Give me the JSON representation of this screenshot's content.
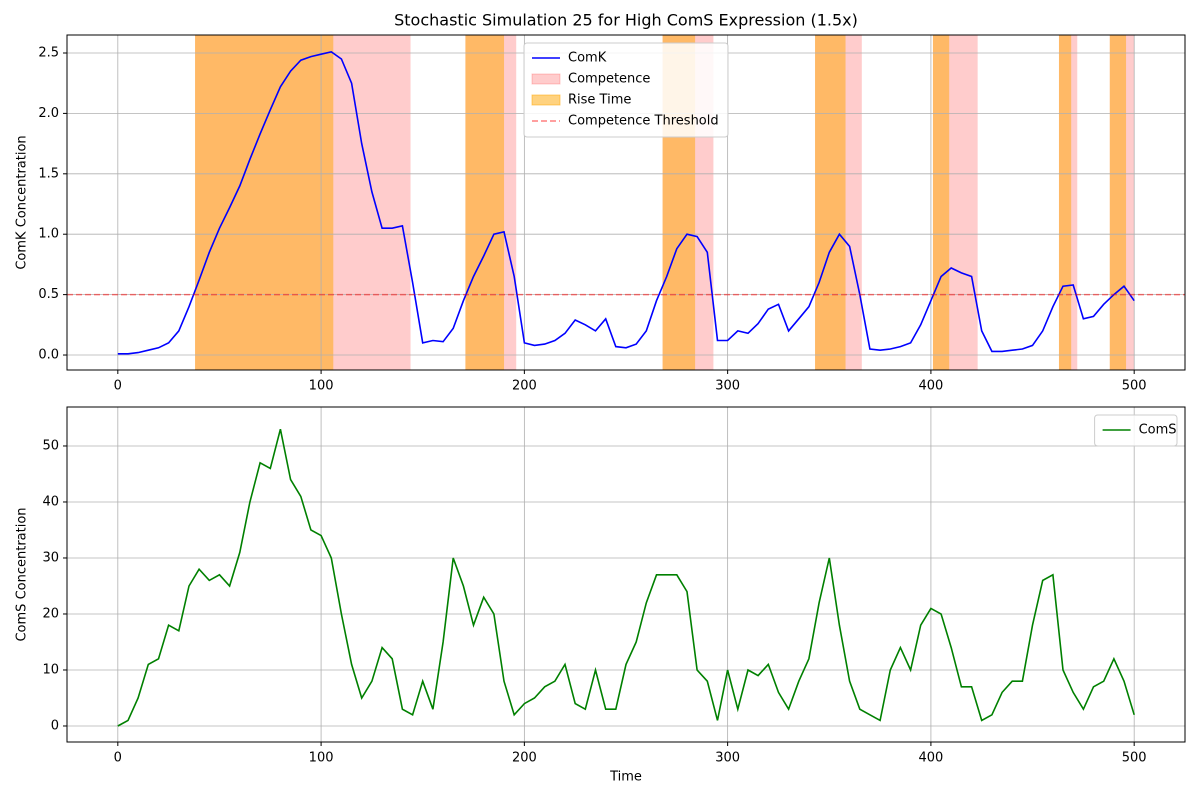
{
  "chart_data": [
    {
      "type": "line",
      "title": "Stochastic Simulation 25 for High ComS Expression (1.5x)",
      "ylabel": "ComK Concentration",
      "x": [
        0,
        5,
        10,
        15,
        20,
        25,
        30,
        35,
        40,
        45,
        50,
        55,
        60,
        65,
        70,
        75,
        80,
        85,
        90,
        95,
        100,
        105,
        110,
        115,
        120,
        125,
        130,
        135,
        140,
        145,
        150,
        155,
        160,
        165,
        170,
        175,
        180,
        185,
        190,
        195,
        200,
        205,
        210,
        215,
        220,
        225,
        230,
        235,
        240,
        245,
        250,
        255,
        260,
        265,
        270,
        275,
        280,
        285,
        290,
        295,
        300,
        305,
        310,
        315,
        320,
        325,
        330,
        335,
        340,
        345,
        350,
        355,
        360,
        365,
        370,
        375,
        380,
        385,
        390,
        395,
        400,
        405,
        410,
        415,
        420,
        425,
        430,
        435,
        440,
        445,
        450,
        455,
        460,
        465,
        470,
        475,
        480,
        485,
        490,
        495,
        500
      ],
      "series": [
        {
          "name": "ComK",
          "color": "#0000ff",
          "values": [
            0.01,
            0.01,
            0.02,
            0.04,
            0.06,
            0.1,
            0.2,
            0.4,
            0.62,
            0.85,
            1.05,
            1.22,
            1.4,
            1.62,
            1.83,
            2.03,
            2.22,
            2.35,
            2.44,
            2.47,
            2.49,
            2.51,
            2.45,
            2.25,
            1.75,
            1.35,
            1.05,
            1.05,
            1.07,
            0.6,
            0.1,
            0.12,
            0.11,
            0.22,
            0.45,
            0.65,
            0.82,
            1.0,
            1.02,
            0.65,
            0.1,
            0.08,
            0.09,
            0.12,
            0.18,
            0.29,
            0.25,
            0.2,
            0.3,
            0.07,
            0.06,
            0.09,
            0.2,
            0.45,
            0.65,
            0.88,
            1.0,
            0.98,
            0.85,
            0.12,
            0.12,
            0.2,
            0.18,
            0.26,
            0.38,
            0.42,
            0.2,
            0.3,
            0.4,
            0.6,
            0.85,
            1.0,
            0.9,
            0.5,
            0.05,
            0.04,
            0.05,
            0.07,
            0.1,
            0.25,
            0.45,
            0.65,
            0.72,
            0.68,
            0.65,
            0.2,
            0.03,
            0.03,
            0.04,
            0.05,
            0.08,
            0.2,
            0.4,
            0.57,
            0.58,
            0.3,
            0.32,
            0.42,
            0.5,
            0.57,
            0.45
          ]
        }
      ],
      "spans": [
        {
          "name": "Competence",
          "color": "#ff0000",
          "alpha": 0.2,
          "ranges": [
            [
              38,
              144
            ],
            [
              171,
              196
            ],
            [
              268,
              293
            ],
            [
              343,
              366
            ],
            [
              401,
              423
            ],
            [
              463,
              472
            ],
            [
              488,
              500
            ]
          ]
        },
        {
          "name": "Rise Time",
          "color": "#ffa500",
          "alpha": 0.5,
          "ranges": [
            [
              38,
              106
            ],
            [
              171,
              190
            ],
            [
              268,
              284
            ],
            [
              343,
              358
            ],
            [
              401,
              409
            ],
            [
              463,
              469
            ],
            [
              488,
              496
            ]
          ]
        }
      ],
      "hlines": [
        {
          "name": "Competence Threshold",
          "value": 0.5,
          "color": "#ff0000",
          "alpha": 0.5
        }
      ],
      "xlim": [
        -25,
        525
      ],
      "ylim": [
        -0.124,
        2.649
      ],
      "xticks": [
        0,
        100,
        200,
        300,
        400,
        500
      ],
      "yticks": [
        {
          "value": 0,
          "label": "0.0"
        },
        0.5,
        {
          "value": 1,
          "label": "1.0"
        },
        1.5,
        {
          "value": 2,
          "label": "2.0"
        },
        2.5
      ],
      "grid": true,
      "legend": "upper center"
    },
    {
      "type": "line",
      "xlabel": "Time",
      "ylabel": "ComS Concentration",
      "x": [
        0,
        5,
        10,
        15,
        20,
        25,
        30,
        35,
        40,
        45,
        50,
        55,
        60,
        65,
        70,
        75,
        80,
        85,
        90,
        95,
        100,
        105,
        110,
        115,
        120,
        125,
        130,
        135,
        140,
        145,
        150,
        155,
        160,
        165,
        170,
        175,
        180,
        185,
        190,
        195,
        200,
        205,
        210,
        215,
        220,
        225,
        230,
        235,
        240,
        245,
        250,
        255,
        260,
        265,
        270,
        275,
        280,
        285,
        290,
        295,
        300,
        305,
        310,
        315,
        320,
        325,
        330,
        335,
        340,
        345,
        350,
        355,
        360,
        365,
        370,
        375,
        380,
        385,
        390,
        395,
        400,
        405,
        410,
        415,
        420,
        425,
        430,
        435,
        440,
        445,
        450,
        455,
        460,
        465,
        470,
        475,
        480,
        485,
        490,
        495,
        500
      ],
      "series": [
        {
          "name": "ComS",
          "color": "#008000",
          "values": [
            0,
            1,
            5,
            11,
            12,
            18,
            17,
            25,
            28,
            26,
            27,
            25,
            31,
            40,
            47,
            46,
            53,
            44,
            41,
            35,
            34,
            30,
            20,
            11,
            5,
            8,
            14,
            12,
            3,
            2,
            8,
            3,
            15,
            30,
            25,
            18,
            23,
            20,
            8,
            2,
            4,
            5,
            7,
            8,
            11,
            4,
            3,
            10,
            3,
            3,
            11,
            15,
            22,
            27,
            27,
            27,
            24,
            10,
            8,
            1,
            10,
            3,
            10,
            9,
            11,
            6,
            3,
            8,
            12,
            22,
            30,
            18,
            8,
            3,
            2,
            1,
            10,
            14,
            10,
            18,
            21,
            20,
            14,
            7,
            7,
            1,
            2,
            6,
            8,
            8,
            18,
            26,
            27,
            10,
            6,
            3,
            7,
            8,
            12,
            8,
            2
          ]
        }
      ],
      "xlim": [
        -25,
        525
      ],
      "ylim": [
        -2.86,
        56.96
      ],
      "xticks": [
        0,
        100,
        200,
        300,
        400,
        500
      ],
      "yticks": [
        0,
        10,
        20,
        30,
        40,
        50
      ],
      "grid": true,
      "legend": "upper right"
    }
  ]
}
